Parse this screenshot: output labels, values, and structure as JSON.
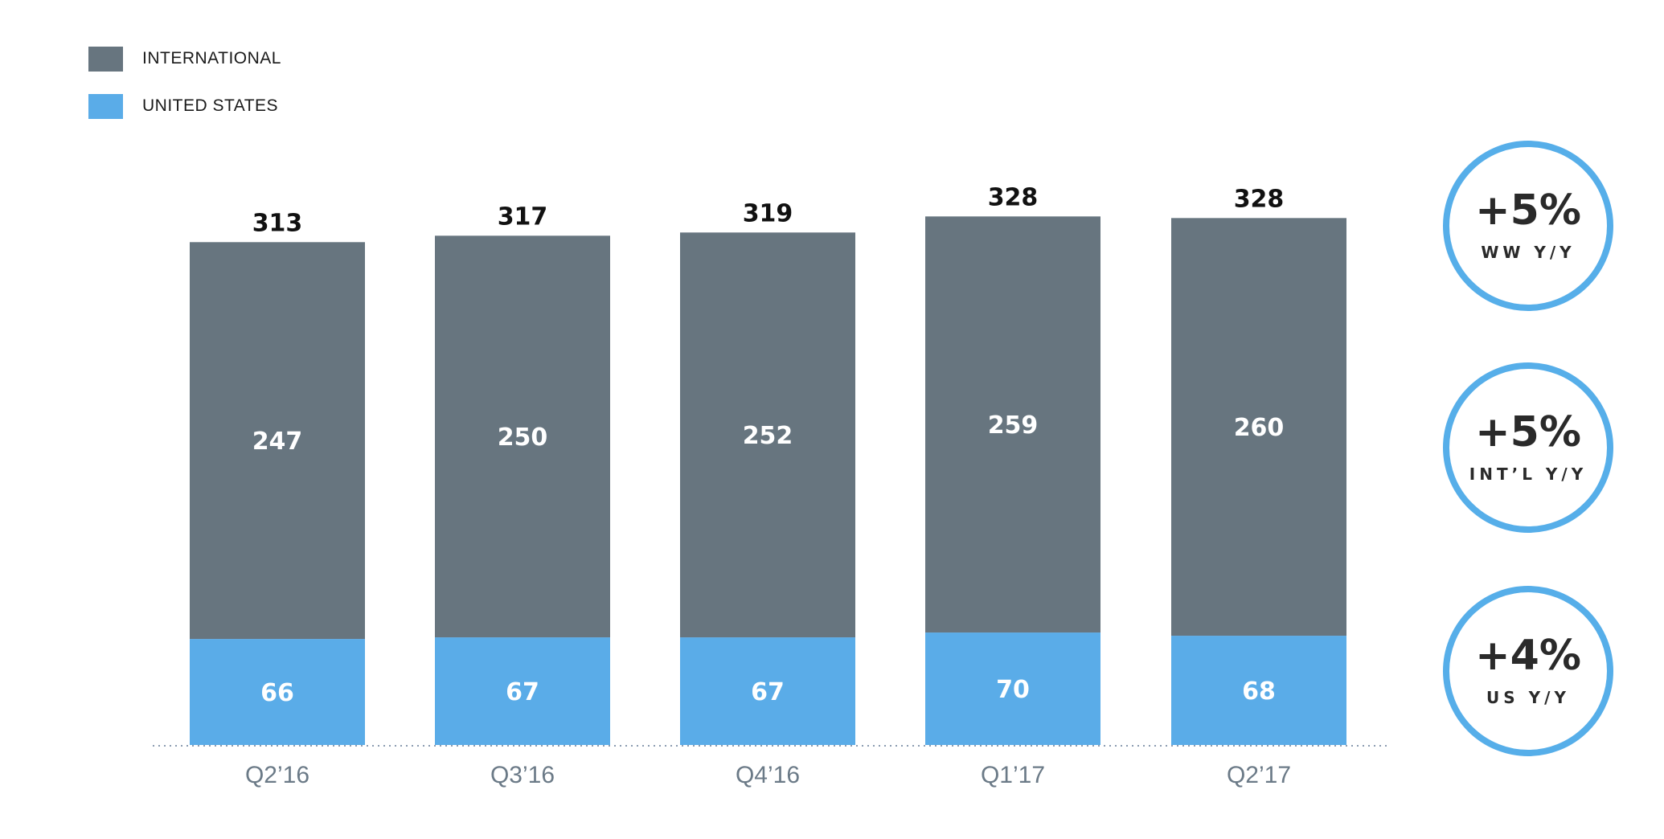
{
  "chart_data": {
    "type": "bar",
    "stacked": true,
    "categories": [
      "Q2’16",
      "Q3’16",
      "Q4’16",
      "Q1’17",
      "Q2’17"
    ],
    "series": [
      {
        "name": "UNITED STATES",
        "color": "#5aacE8",
        "values": [
          66,
          67,
          67,
          70,
          68
        ]
      },
      {
        "name": "INTERNATIONAL",
        "color": "#67757f",
        "values": [
          247,
          250,
          252,
          259,
          260
        ]
      }
    ],
    "totals": [
      313,
      317,
      319,
      328,
      328
    ],
    "legend_placement": "top-left",
    "grid": false,
    "baseline_style": "dotted",
    "title": "",
    "xlabel": "",
    "ylabel": ""
  },
  "legend": [
    {
      "label": "INTERNATIONAL",
      "color": "#67757f"
    },
    {
      "label": "UNITED STATES",
      "color": "#5aacE8"
    }
  ],
  "badges": [
    {
      "value": "+5%",
      "label": "WW Y/Y"
    },
    {
      "value": "+5%",
      "label": "INT’L Y/Y"
    },
    {
      "value": "+4%",
      "label": "US Y/Y"
    }
  ],
  "colors": {
    "badge_ring": "#56aee9",
    "tick_text": "#6b7a87",
    "baseline": "#8a9bb0"
  }
}
